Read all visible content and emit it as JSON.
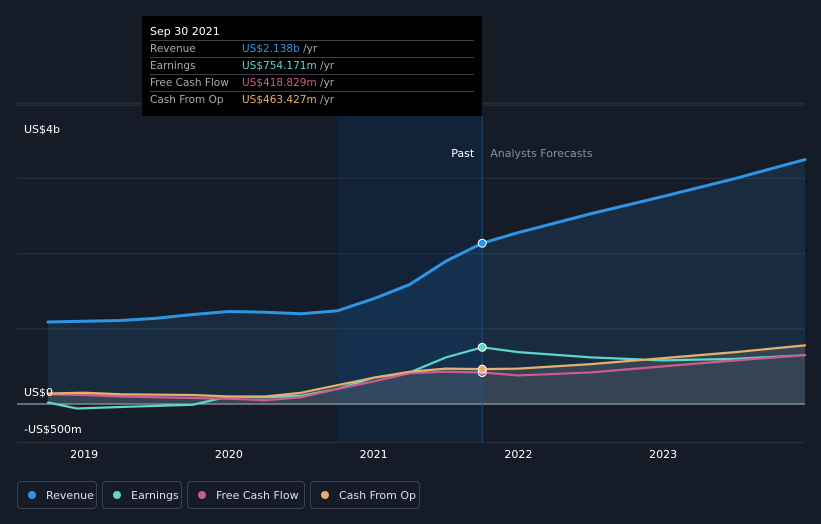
{
  "tooltip": {
    "date": "Sep 30 2021",
    "rows": [
      {
        "label": "Revenue",
        "value": "US$2.138b",
        "unit": "/yr",
        "color": "#2d95e3"
      },
      {
        "label": "Earnings",
        "value": "US$754.171m",
        "unit": "/yr",
        "color": "#5dd6cc"
      },
      {
        "label": "Free Cash Flow",
        "value": "US$418.829m",
        "unit": "/yr",
        "color": "#cf5b8e"
      },
      {
        "label": "Cash From Op",
        "value": "US$463.427m",
        "unit": "/yr",
        "color": "#e5b069"
      }
    ]
  },
  "chart_data": {
    "type": "line",
    "title": "",
    "xlabel": "",
    "ylabel": "",
    "ylim": [
      -500,
      4000
    ],
    "y_tick_labels": [
      "US$4b",
      "US$0",
      "-US$500m"
    ],
    "x_tick_labels": [
      "2019",
      "2020",
      "2021",
      "2022",
      "2023"
    ],
    "x_range": [
      2018.75,
      2023.98
    ],
    "past_label": "Past",
    "forecast_label": "Analysts Forecasts",
    "past_end": 2021.75,
    "highlight_start": 2020.75,
    "series": [
      {
        "name": "Revenue",
        "color": "#2d95e3",
        "points": [
          [
            2018.75,
            1090
          ],
          [
            2019.0,
            1100
          ],
          [
            2019.25,
            1110
          ],
          [
            2019.5,
            1140
          ],
          [
            2019.75,
            1190
          ],
          [
            2020.0,
            1230
          ],
          [
            2020.25,
            1220
          ],
          [
            2020.5,
            1200
          ],
          [
            2020.75,
            1240
          ],
          [
            2021.0,
            1400
          ],
          [
            2021.25,
            1590
          ],
          [
            2021.5,
            1900
          ],
          [
            2021.75,
            2138
          ],
          [
            2022.0,
            2280
          ],
          [
            2022.5,
            2530
          ],
          [
            2023.0,
            2760
          ],
          [
            2023.5,
            3000
          ],
          [
            2023.98,
            3250
          ]
        ]
      },
      {
        "name": "Earnings",
        "color": "#5dd6cc",
        "points": [
          [
            2018.75,
            20
          ],
          [
            2018.95,
            -60
          ],
          [
            2019.25,
            -40
          ],
          [
            2019.75,
            -10
          ],
          [
            2020.0,
            100
          ],
          [
            2020.25,
            90
          ],
          [
            2020.5,
            110
          ],
          [
            2020.75,
            200
          ],
          [
            2021.0,
            350
          ],
          [
            2021.25,
            420
          ],
          [
            2021.5,
            620
          ],
          [
            2021.75,
            754
          ],
          [
            2022.0,
            690
          ],
          [
            2022.5,
            620
          ],
          [
            2023.0,
            580
          ],
          [
            2023.5,
            600
          ],
          [
            2023.98,
            650
          ]
        ]
      },
      {
        "name": "Free Cash Flow",
        "color": "#cf5b8e",
        "points": [
          [
            2018.75,
            130
          ],
          [
            2019.0,
            120
          ],
          [
            2019.25,
            100
          ],
          [
            2019.75,
            80
          ],
          [
            2020.0,
            70
          ],
          [
            2020.25,
            50
          ],
          [
            2020.5,
            90
          ],
          [
            2020.75,
            200
          ],
          [
            2021.0,
            300
          ],
          [
            2021.25,
            410
          ],
          [
            2021.5,
            430
          ],
          [
            2021.75,
            418.8
          ],
          [
            2022.0,
            380
          ],
          [
            2022.5,
            420
          ],
          [
            2023.0,
            500
          ],
          [
            2023.5,
            580
          ],
          [
            2023.98,
            650
          ]
        ]
      },
      {
        "name": "Cash From Op",
        "color": "#e5b069",
        "points": [
          [
            2018.75,
            140
          ],
          [
            2019.0,
            150
          ],
          [
            2019.25,
            130
          ],
          [
            2019.75,
            120
          ],
          [
            2020.0,
            100
          ],
          [
            2020.25,
            100
          ],
          [
            2020.5,
            150
          ],
          [
            2020.75,
            250
          ],
          [
            2021.0,
            350
          ],
          [
            2021.25,
            430
          ],
          [
            2021.5,
            470
          ],
          [
            2021.75,
            463.4
          ],
          [
            2022.0,
            470
          ],
          [
            2022.5,
            530
          ],
          [
            2023.0,
            610
          ],
          [
            2023.5,
            690
          ],
          [
            2023.98,
            780
          ]
        ]
      }
    ]
  }
}
